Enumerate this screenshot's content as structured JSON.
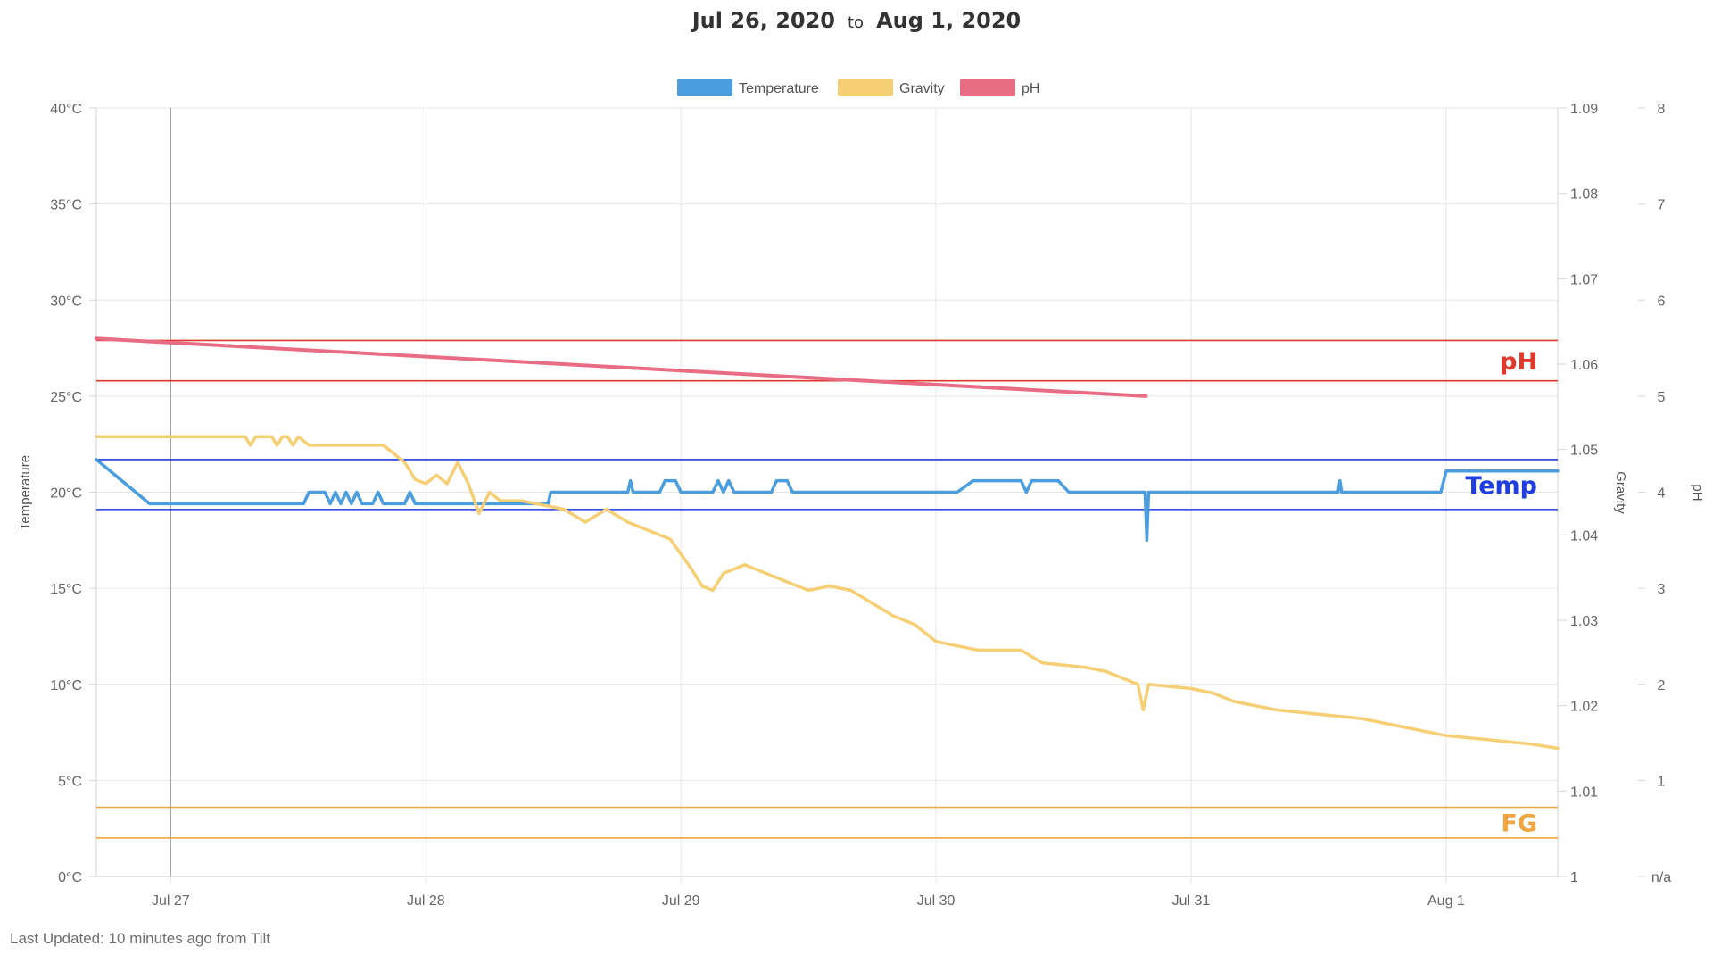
{
  "title": {
    "start": "Jul 26, 2020",
    "to": "to",
    "end": "Aug 1, 2020"
  },
  "footer": {
    "text": "Last Updated: 10 minutes ago from Tilt"
  },
  "colors": {
    "temperature": "#4a9ee0",
    "gravity": "#f6cf74",
    "ph": "#e96c85",
    "ph_band": "#e0382b",
    "temp_band": "#1f3de0",
    "fg_band": "#efa640",
    "grid": "#e6e6e6"
  },
  "chart_data": {
    "type": "line",
    "x_domain": [
      "2020-07-26T17:00",
      "2020-08-01T10:30"
    ],
    "x_ticks": [
      {
        "label": "Jul 27",
        "t": "2020-07-27T00:00"
      },
      {
        "label": "Jul 28",
        "t": "2020-07-28T00:00"
      },
      {
        "label": "Jul 29",
        "t": "2020-07-29T00:00"
      },
      {
        "label": "Jul 30",
        "t": "2020-07-30T00:00"
      },
      {
        "label": "Jul 31",
        "t": "2020-07-31T00:00"
      },
      {
        "label": "Aug 1",
        "t": "2020-08-01T00:00"
      }
    ],
    "vertical_marker": "2020-07-27T00:00",
    "axes": {
      "temperature": {
        "label": "Temperature",
        "min": 0,
        "max": 40,
        "ticks": [
          "0°C",
          "5°C",
          "10°C",
          "15°C",
          "20°C",
          "25°C",
          "30°C",
          "35°C",
          "40°C"
        ]
      },
      "gravity": {
        "label": "Gravity",
        "min": 1.0,
        "max": 1.09,
        "ticks": [
          "1",
          "1.01",
          "1.02",
          "1.03",
          "1.04",
          "1.05",
          "1.06",
          "1.07",
          "1.08",
          "1.09"
        ]
      },
      "ph": {
        "label": "pH",
        "min": 0,
        "max": 8,
        "ticks": [
          "n/a",
          "1",
          "2",
          "3",
          "4",
          "5",
          "6",
          "7",
          "8"
        ]
      }
    },
    "legend": {
      "position": "top",
      "items": [
        {
          "name": "Temperature",
          "color": "#4a9ee0"
        },
        {
          "name": "Gravity",
          "color": "#f6cf74"
        },
        {
          "name": "pH",
          "color": "#e96c85"
        }
      ]
    },
    "bands": [
      {
        "label": "pH",
        "axis": "temperature",
        "low": 25.8,
        "high": 27.9,
        "color": "#e0382b"
      },
      {
        "label": "Temp",
        "axis": "temperature",
        "low": 19.1,
        "high": 21.7,
        "color": "#1f3de0"
      },
      {
        "label": "FG",
        "axis": "temperature",
        "low": 2.0,
        "high": 3.6,
        "color": "#efa640"
      }
    ],
    "series": [
      {
        "name": "Temperature",
        "axis": "temperature",
        "points": [
          [
            "2020-07-26T17:00",
            21.7
          ],
          [
            "2020-07-26T22:00",
            19.4
          ],
          [
            "2020-07-27T12:30",
            19.4
          ],
          [
            "2020-07-27T13:00",
            20.0
          ],
          [
            "2020-07-27T14:30",
            20.0
          ],
          [
            "2020-07-27T15:00",
            19.4
          ],
          [
            "2020-07-27T15:30",
            20.0
          ],
          [
            "2020-07-27T16:00",
            19.4
          ],
          [
            "2020-07-27T16:30",
            20.0
          ],
          [
            "2020-07-27T17:00",
            19.4
          ],
          [
            "2020-07-27T17:30",
            20.0
          ],
          [
            "2020-07-27T18:00",
            19.4
          ],
          [
            "2020-07-27T19:00",
            19.4
          ],
          [
            "2020-07-27T19:30",
            20.0
          ],
          [
            "2020-07-27T20:00",
            19.4
          ],
          [
            "2020-07-27T22:00",
            19.4
          ],
          [
            "2020-07-27T22:30",
            20.0
          ],
          [
            "2020-07-27T23:00",
            19.4
          ],
          [
            "2020-07-28T11:30",
            19.4
          ],
          [
            "2020-07-28T11:45",
            20.0
          ],
          [
            "2020-07-28T19:00",
            20.0
          ],
          [
            "2020-07-28T19:15",
            20.6
          ],
          [
            "2020-07-28T19:30",
            20.0
          ],
          [
            "2020-07-28T22:00",
            20.0
          ],
          [
            "2020-07-28T22:30",
            20.6
          ],
          [
            "2020-07-28T23:30",
            20.6
          ],
          [
            "2020-07-29T00:00",
            20.0
          ],
          [
            "2020-07-29T03:00",
            20.0
          ],
          [
            "2020-07-29T03:30",
            20.6
          ],
          [
            "2020-07-29T04:00",
            20.0
          ],
          [
            "2020-07-29T04:30",
            20.6
          ],
          [
            "2020-07-29T05:00",
            20.0
          ],
          [
            "2020-07-29T08:30",
            20.0
          ],
          [
            "2020-07-29T09:00",
            20.6
          ],
          [
            "2020-07-29T10:00",
            20.6
          ],
          [
            "2020-07-29T10:30",
            20.0
          ],
          [
            "2020-07-30T02:00",
            20.0
          ],
          [
            "2020-07-30T03:30",
            20.6
          ],
          [
            "2020-07-30T08:00",
            20.6
          ],
          [
            "2020-07-30T08:30",
            20.0
          ],
          [
            "2020-07-30T09:00",
            20.6
          ],
          [
            "2020-07-30T11:30",
            20.6
          ],
          [
            "2020-07-30T12:30",
            20.0
          ],
          [
            "2020-07-30T19:40",
            20.0
          ],
          [
            "2020-07-30T19:50",
            17.5
          ],
          [
            "2020-07-30T20:00",
            20.0
          ],
          [
            "2020-07-31T13:50",
            20.0
          ],
          [
            "2020-07-31T14:00",
            20.6
          ],
          [
            "2020-07-31T14:10",
            20.0
          ],
          [
            "2020-07-31T23:30",
            20.0
          ],
          [
            "2020-08-01T00:00",
            21.1
          ],
          [
            "2020-08-01T10:30",
            21.1
          ]
        ]
      },
      {
        "name": "Gravity",
        "axis": "gravity",
        "points": [
          [
            "2020-07-26T17:00",
            1.0515
          ],
          [
            "2020-07-27T07:00",
            1.0515
          ],
          [
            "2020-07-27T07:30",
            1.0505
          ],
          [
            "2020-07-27T08:00",
            1.0515
          ],
          [
            "2020-07-27T09:30",
            1.0515
          ],
          [
            "2020-07-27T10:00",
            1.0505
          ],
          [
            "2020-07-27T10:30",
            1.0515
          ],
          [
            "2020-07-27T11:00",
            1.0515
          ],
          [
            "2020-07-27T11:30",
            1.0505
          ],
          [
            "2020-07-27T12:00",
            1.0515
          ],
          [
            "2020-07-27T13:00",
            1.0505
          ],
          [
            "2020-07-27T20:00",
            1.0505
          ],
          [
            "2020-07-27T21:00",
            1.0495
          ],
          [
            "2020-07-27T22:00",
            1.0485
          ],
          [
            "2020-07-27T23:00",
            1.0465
          ],
          [
            "2020-07-28T00:00",
            1.046
          ],
          [
            "2020-07-28T01:00",
            1.047
          ],
          [
            "2020-07-28T02:00",
            1.046
          ],
          [
            "2020-07-28T03:00",
            1.0485
          ],
          [
            "2020-07-28T04:00",
            1.046
          ],
          [
            "2020-07-28T05:00",
            1.0425
          ],
          [
            "2020-07-28T06:00",
            1.045
          ],
          [
            "2020-07-28T07:00",
            1.044
          ],
          [
            "2020-07-28T09:00",
            1.044
          ],
          [
            "2020-07-28T11:00",
            1.0435
          ],
          [
            "2020-07-28T13:00",
            1.043
          ],
          [
            "2020-07-28T15:00",
            1.0415
          ],
          [
            "2020-07-28T17:00",
            1.043
          ],
          [
            "2020-07-28T19:00",
            1.0415
          ],
          [
            "2020-07-28T21:00",
            1.0405
          ],
          [
            "2020-07-28T23:00",
            1.0395
          ],
          [
            "2020-07-29T01:00",
            1.036
          ],
          [
            "2020-07-29T02:00",
            1.034
          ],
          [
            "2020-07-29T03:00",
            1.0335
          ],
          [
            "2020-07-29T04:00",
            1.0355
          ],
          [
            "2020-07-29T06:00",
            1.0365
          ],
          [
            "2020-07-29T08:00",
            1.0355
          ],
          [
            "2020-07-29T10:00",
            1.0345
          ],
          [
            "2020-07-29T12:00",
            1.0335
          ],
          [
            "2020-07-29T14:00",
            1.034
          ],
          [
            "2020-07-29T16:00",
            1.0335
          ],
          [
            "2020-07-29T18:00",
            1.032
          ],
          [
            "2020-07-29T20:00",
            1.0305
          ],
          [
            "2020-07-29T22:00",
            1.0295
          ],
          [
            "2020-07-30T00:00",
            1.0275
          ],
          [
            "2020-07-30T02:00",
            1.027
          ],
          [
            "2020-07-30T04:00",
            1.0265
          ],
          [
            "2020-07-30T08:00",
            1.0265
          ],
          [
            "2020-07-30T10:00",
            1.025
          ],
          [
            "2020-07-30T14:00",
            1.0245
          ],
          [
            "2020-07-30T16:00",
            1.024
          ],
          [
            "2020-07-30T19:00",
            1.0225
          ],
          [
            "2020-07-30T19:30",
            1.0195
          ],
          [
            "2020-07-30T20:00",
            1.0225
          ],
          [
            "2020-07-31T00:00",
            1.022
          ],
          [
            "2020-07-31T02:00",
            1.0215
          ],
          [
            "2020-07-31T04:00",
            1.0205
          ],
          [
            "2020-07-31T08:00",
            1.0195
          ],
          [
            "2020-07-31T12:00",
            1.019
          ],
          [
            "2020-07-31T16:00",
            1.0185
          ],
          [
            "2020-07-31T20:00",
            1.0175
          ],
          [
            "2020-08-01T00:00",
            1.0165
          ],
          [
            "2020-08-01T04:00",
            1.016
          ],
          [
            "2020-08-01T08:00",
            1.0155
          ],
          [
            "2020-08-01T10:30",
            1.015
          ]
        ]
      },
      {
        "name": "pH",
        "axis": "ph",
        "points": [
          [
            "2020-07-26T17:00",
            5.6
          ],
          [
            "2020-07-30T19:45",
            5.0
          ]
        ]
      }
    ]
  }
}
